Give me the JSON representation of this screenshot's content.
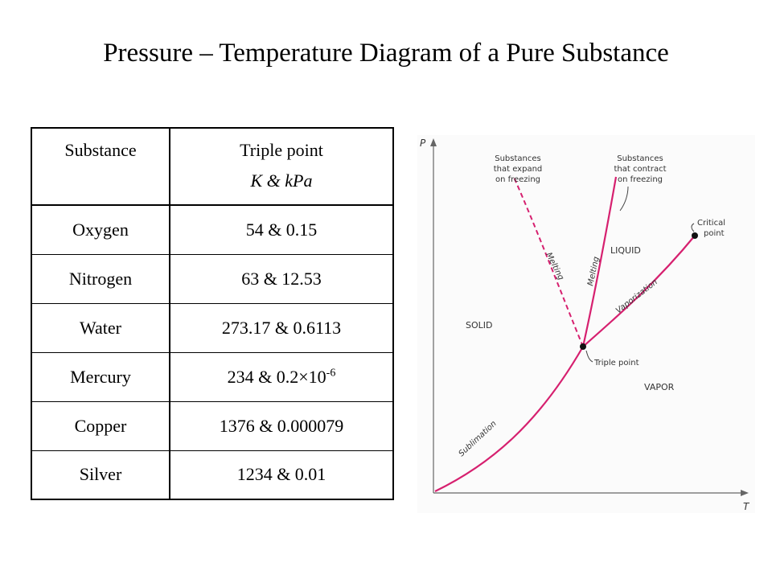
{
  "title": "Pressure – Temperature Diagram of a Pure Substance",
  "table": {
    "headers": {
      "substance": "Substance",
      "triple_point": "Triple point",
      "units": "K  & kPa"
    },
    "rows": [
      {
        "substance": "Oxygen",
        "value": "54 & 0.15"
      },
      {
        "substance": "Nitrogen",
        "value": "63 & 12.53"
      },
      {
        "substance": "Water",
        "value": "273.17 & 0.6113"
      },
      {
        "substance": "Mercury",
        "value": "234 & 0.2×10",
        "exponent": "-6"
      },
      {
        "substance": "Copper",
        "value": "1376 & 0.000079"
      },
      {
        "substance": "Silver",
        "value": "1234 & 0.01"
      }
    ]
  },
  "diagram": {
    "axis_p": "P",
    "axis_t": "T",
    "expand_label": [
      "Substances",
      "that expand",
      "on freezing"
    ],
    "contract_label": [
      "Substances",
      "that contract",
      "on freezing"
    ],
    "critical_label": [
      "Critical",
      "point"
    ],
    "melting_dashed": "Melting",
    "melting_solid": "Melting",
    "vaporization": "Vaporization",
    "sublimation": "Sublimation",
    "liquid": "LIQUID",
    "solid": "SOLID",
    "vapor": "VAPOR",
    "triple_point": "Triple point",
    "curve_color": "#d6206f"
  }
}
